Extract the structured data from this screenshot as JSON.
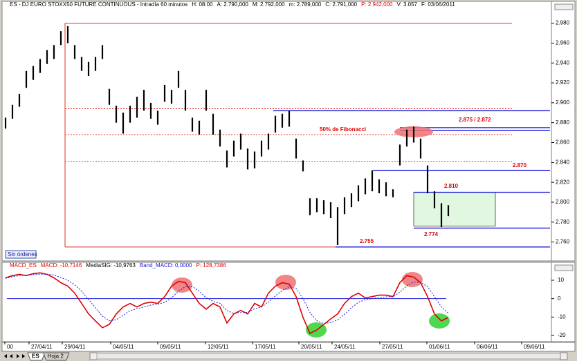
{
  "chart_data": [
    {
      "type": "ohlc",
      "title": "ES - DJ EURO STOXX50 FUTURE CONTINUOUS - Intradía 60 minutos",
      "info": [
        {
          "text": "H: 08:00",
          "color": "#000"
        },
        {
          "text": "A: 2.790,000",
          "color": "#000"
        },
        {
          "text": "M: 2.792,000",
          "color": "#000"
        },
        {
          "text": "m: 2.789,000",
          "color": "#000"
        },
        {
          "text": "C: 2.791,000",
          "color": "#000"
        },
        {
          "text": "P: 2.942,000",
          "color": "#e00000"
        },
        {
          "text": "V: 3.057",
          "color": "#000"
        },
        {
          "text": "F: 03/06/2011",
          "color": "#000"
        }
      ],
      "high": [
        2885,
        2898,
        2909,
        2932,
        2937,
        2944,
        2953,
        2958,
        2972,
        2977,
        2958,
        2946,
        2941,
        2946,
        2958,
        2914,
        2897,
        2890,
        2897,
        2906,
        2913,
        2900,
        2892,
        2918,
        2913,
        2932,
        2913,
        2885,
        2882,
        2913,
        2889,
        2873,
        2852,
        2862,
        2869,
        2854,
        2851,
        2862,
        2869,
        2887,
        2889,
        2892,
        2864,
        2842,
        2804,
        2804,
        2802,
        2800,
        2795,
        2805,
        2809,
        2817,
        2824,
        2832,
        2823,
        2820,
        2813,
        2858,
        2873,
        2876,
        2864,
        2837,
        2811,
        2799,
        2797
      ],
      "low": [
        2874,
        2884,
        2896,
        2915,
        2923,
        2930,
        2939,
        2944,
        2958,
        2960,
        2944,
        2932,
        2927,
        2932,
        2944,
        2898,
        2880,
        2869,
        2880,
        2885,
        2892,
        2884,
        2878,
        2901,
        2899,
        2915,
        2892,
        2871,
        2868,
        2892,
        2868,
        2856,
        2835,
        2846,
        2853,
        2833,
        2834,
        2846,
        2853,
        2870,
        2875,
        2876,
        2844,
        2831,
        2787,
        2790,
        2788,
        2784,
        2757,
        2788,
        2795,
        2801,
        2808,
        2811,
        2809,
        2806,
        2805,
        2837,
        2856,
        2860,
        2844,
        2809,
        2794,
        2775,
        2786
      ],
      "color": "#000000",
      "xlim": [
        -0.3,
        78.7
      ],
      "ylim": [
        2741,
        2995
      ],
      "yticks": [
        {
          "value": 2760,
          "label": "2.760"
        },
        {
          "value": 2780,
          "label": "2.780"
        },
        {
          "value": 2800,
          "label": "2.800"
        },
        {
          "value": 2820,
          "label": "2.820"
        },
        {
          "value": 2840,
          "label": "2.840"
        },
        {
          "value": 2860,
          "label": "2.860"
        },
        {
          "value": 2880,
          "label": "2.880"
        },
        {
          "value": 2900,
          "label": "2.900"
        },
        {
          "value": 2920,
          "label": "2.920"
        },
        {
          "value": 2940,
          "label": "2.940"
        },
        {
          "value": 2960,
          "label": "2.960"
        },
        {
          "value": 2980,
          "label": "2.980"
        }
      ],
      "fib_range": {
        "low": 2755,
        "high": 2980,
        "from": 8.6,
        "to": 73.2,
        "low_to": 47.7,
        "color": "#e03020"
      },
      "fib_lines": [
        2894,
        2868,
        2841
      ],
      "levels": [
        {
          "value": 2892,
          "from": 38.7
        },
        {
          "value": 2875,
          "from": 57
        },
        {
          "value": 2872,
          "from": 57
        },
        {
          "value": 2832,
          "from": 53.1
        },
        {
          "value": 2810,
          "from": 59
        },
        {
          "value": 2774,
          "from": 59
        },
        {
          "value": 2755,
          "from": 47.7
        }
      ],
      "level_color": "#1a1adc",
      "zone": {
        "from": 59,
        "to": 70.8,
        "low": 2776,
        "high": 2810
      },
      "annotations": [
        "50% de Fibonacci",
        "2.875 / 2.872",
        "2.870",
        "2.810",
        "2.774",
        "2.755"
      ],
      "button": "Sin órdenes"
    },
    {
      "type": "line",
      "info": [
        {
          "text": "MACD_ES",
          "color": "#e00000"
        },
        {
          "text": "MACD: -10,7146",
          "color": "#e00000"
        },
        {
          "text": "MediaSIG: -10,9763",
          "color": "#000"
        },
        {
          "text": "Band_MACD: 0,0000",
          "color": "#1a1adc"
        },
        {
          "text": "P: 128,7386",
          "color": "#e00000"
        }
      ],
      "series": [
        {
          "color": "#e00000",
          "values": [
            11.3,
            12.5,
            13.2,
            12.5,
            13.6,
            14.0,
            13.2,
            11.3,
            8.7,
            6.8,
            3.0,
            -2.6,
            -8.3,
            -12.1,
            -15.8,
            -14.0,
            -8.3,
            -4.5,
            -2.6,
            -4.5,
            -2.6,
            -1.9,
            -2.6,
            1.1,
            6.8,
            9.4,
            8.7,
            3.0,
            -2.6,
            -5.7,
            -2.6,
            -4.5,
            -13.2,
            -8.3,
            -6.4,
            -8.3,
            -2.6,
            -4.5,
            3.0,
            6.8,
            8.7,
            7.9,
            1.1,
            -10.2,
            -18.9,
            -17.0,
            -14.0,
            -11.0,
            -8.3,
            -2.6,
            1.1,
            3.0,
            0.4,
            1.1,
            1.9,
            1.9,
            1.1,
            8.7,
            12.5,
            11.7,
            8.7,
            1.1,
            -8.3,
            -12.1,
            -10.2
          ]
        },
        {
          "color": "#1a1adc",
          "dashed": true,
          "values": [
            11,
            12,
            12.5,
            12.8,
            13,
            13.3,
            13.3,
            12.8,
            11.5,
            10,
            7.5,
            4,
            -0.5,
            -5,
            -9.5,
            -12,
            -11.5,
            -9,
            -6.5,
            -5.5,
            -4.5,
            -3.5,
            -3,
            -2,
            0.5,
            4,
            6.5,
            6.5,
            4,
            0.5,
            -1.5,
            -2.5,
            -6.5,
            -8,
            -7.5,
            -7.5,
            -5.5,
            -4.5,
            -2,
            1.5,
            4.5,
            6.5,
            5.5,
            0,
            -7.5,
            -12,
            -13.5,
            -13,
            -11.5,
            -8.5,
            -5,
            -2,
            -0.5,
            0,
            0.5,
            1,
            1,
            3.5,
            7,
            9,
            9,
            6.5,
            1,
            -4.5,
            -8
          ]
        }
      ],
      "band": {
        "value": 0,
        "from": 0.2,
        "to": 63.7,
        "color": "#1a1adc"
      },
      "xlim": [
        -0.3,
        78.7
      ],
      "ylim": [
        -23,
        19
      ],
      "yticks": [
        -20,
        -10,
        0,
        10
      ],
      "xticks": [
        {
          "value": -0.1,
          "label": "00"
        },
        {
          "value": 3.4,
          "label": "27/04/11"
        },
        {
          "value": 8.2,
          "label": "29/04/11"
        },
        {
          "value": 15.2,
          "label": "04/05/11"
        },
        {
          "value": 22,
          "label": "09/05/11"
        },
        {
          "value": 28.9,
          "label": "12/05/11"
        },
        {
          "value": 35.7,
          "label": "17/05/11"
        },
        {
          "value": 42.4,
          "label": "20/05/11"
        },
        {
          "value": 47.2,
          "label": "24/05/11"
        },
        {
          "value": 54.1,
          "label": "27/05/11"
        },
        {
          "value": 60.9,
          "label": "01/06/11"
        },
        {
          "value": 67.8,
          "label": "06/06/11"
        },
        {
          "value": 74.6,
          "label": "09/06/11"
        }
      ],
      "tabs": [
        "ES",
        "Hoja 2"
      ]
    }
  ]
}
